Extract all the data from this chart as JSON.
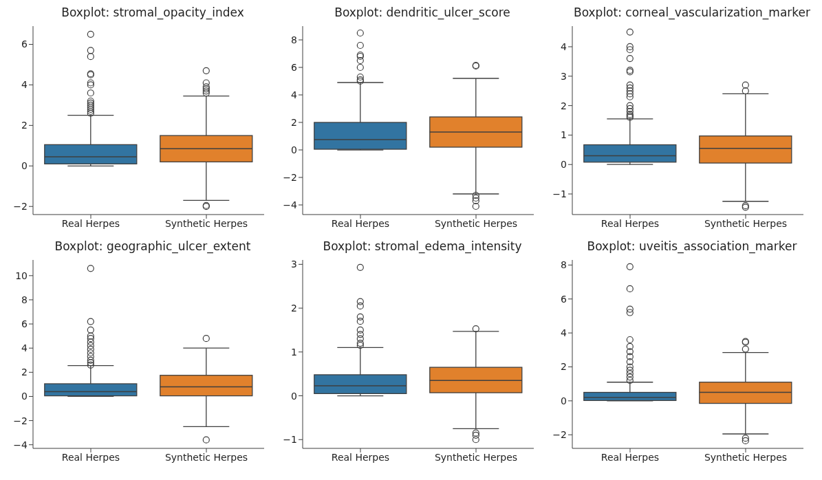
{
  "chart_data": [
    {
      "type": "box",
      "title": "Boxplot: stromal_opacity_index",
      "categories": [
        "Real Herpes",
        "Synthetic Herpes"
      ],
      "colors": [
        "#3274a1",
        "#e1812c"
      ],
      "ylim": [
        -2.4,
        6.9
      ],
      "yticks": [
        -2,
        0,
        2,
        4,
        6
      ],
      "boxes": [
        {
          "low": 0,
          "q1": 0.1,
          "median": 0.45,
          "q3": 1.05,
          "high": 2.5,
          "outliers": [
            2.6,
            2.7,
            2.8,
            2.9,
            3.0,
            3.1,
            3.2,
            3.6,
            4.0,
            4.1,
            4.5,
            4.55,
            5.4,
            5.7,
            6.5
          ]
        },
        {
          "low": -1.7,
          "q1": 0.2,
          "median": 0.85,
          "q3": 1.5,
          "high": 3.45,
          "outliers": [
            3.6,
            3.7,
            3.8,
            3.9,
            4.1,
            4.7,
            -1.95,
            -2.0
          ]
        }
      ]
    },
    {
      "type": "box",
      "title": "Boxplot: dendritic_ulcer_score",
      "categories": [
        "Real Herpes",
        "Synthetic Herpes"
      ],
      "colors": [
        "#3274a1",
        "#e1812c"
      ],
      "ylim": [
        -4.7,
        9.0
      ],
      "yticks": [
        -4,
        -2,
        0,
        2,
        4,
        6,
        8
      ],
      "boxes": [
        {
          "low": 0,
          "q1": 0.05,
          "median": 0.75,
          "q3": 2.0,
          "high": 4.9,
          "outliers": [
            5.0,
            5.1,
            5.3,
            6.0,
            6.5,
            6.8,
            6.9,
            7.6,
            8.5
          ]
        },
        {
          "low": -3.2,
          "q1": 0.2,
          "median": 1.3,
          "q3": 2.4,
          "high": 5.2,
          "outliers": [
            6.1,
            6.15,
            -3.3,
            -3.5,
            -3.7,
            -4.1
          ]
        }
      ]
    },
    {
      "type": "box",
      "title": "Boxplot: corneal_vascularization_marker",
      "categories": [
        "Real Herpes",
        "Synthetic Herpes"
      ],
      "colors": [
        "#3274a1",
        "#e1812c"
      ],
      "ylim": [
        -1.7,
        4.7
      ],
      "yticks": [
        -1,
        0,
        1,
        2,
        3,
        4
      ],
      "boxes": [
        {
          "low": 0,
          "q1": 0.08,
          "median": 0.3,
          "q3": 0.67,
          "high": 1.55,
          "outliers": [
            1.6,
            1.65,
            1.7,
            1.8,
            1.9,
            2.0,
            2.3,
            2.4,
            2.5,
            2.6,
            2.7,
            3.15,
            3.2,
            3.6,
            3.9,
            4.0,
            4.5
          ]
        },
        {
          "low": -1.25,
          "q1": 0.05,
          "median": 0.55,
          "q3": 0.97,
          "high": 2.4,
          "outliers": [
            2.5,
            2.7,
            -1.4,
            -1.45
          ]
        }
      ]
    },
    {
      "type": "box",
      "title": "Boxplot: geographic_ulcer_extent",
      "categories": [
        "Real Herpes",
        "Synthetic Herpes"
      ],
      "colors": [
        "#3274a1",
        "#e1812c"
      ],
      "ylim": [
        -4.3,
        11.3
      ],
      "yticks": [
        -4,
        -2,
        0,
        2,
        4,
        6,
        8,
        10
      ],
      "boxes": [
        {
          "low": 0,
          "q1": 0.05,
          "median": 0.4,
          "q3": 1.05,
          "high": 2.55,
          "outliers": [
            2.6,
            2.8,
            3.0,
            3.3,
            3.6,
            3.9,
            4.2,
            4.5,
            4.8,
            5.0,
            5.5,
            6.2,
            10.6
          ]
        },
        {
          "low": -2.5,
          "q1": 0.05,
          "median": 0.8,
          "q3": 1.75,
          "high": 4.0,
          "outliers": [
            4.8,
            -3.6
          ]
        }
      ]
    },
    {
      "type": "box",
      "title": "Boxplot: stromal_edema_intensity",
      "categories": [
        "Real Herpes",
        "Synthetic Herpes"
      ],
      "colors": [
        "#3274a1",
        "#e1812c"
      ],
      "ylim": [
        -1.2,
        3.1
      ],
      "yticks": [
        -1,
        0,
        1,
        2,
        3
      ],
      "boxes": [
        {
          "low": 0,
          "q1": 0.05,
          "median": 0.23,
          "q3": 0.48,
          "high": 1.1,
          "outliers": [
            1.15,
            1.2,
            1.3,
            1.4,
            1.5,
            1.7,
            1.8,
            2.05,
            2.15,
            2.93
          ]
        },
        {
          "low": -0.75,
          "q1": 0.07,
          "median": 0.35,
          "q3": 0.65,
          "high": 1.47,
          "outliers": [
            1.53,
            -0.85,
            -0.9,
            -1.0
          ]
        }
      ]
    },
    {
      "type": "box",
      "title": "Boxplot: uveitis_association_marker",
      "categories": [
        "Real Herpes",
        "Synthetic Herpes"
      ],
      "colors": [
        "#3274a1",
        "#e1812c"
      ],
      "ylim": [
        -2.8,
        8.3
      ],
      "yticks": [
        -2,
        0,
        2,
        4,
        6,
        8
      ],
      "boxes": [
        {
          "low": 0,
          "q1": 0.02,
          "median": 0.2,
          "q3": 0.5,
          "high": 1.1,
          "outliers": [
            1.2,
            1.4,
            1.6,
            1.8,
            2.0,
            2.3,
            2.6,
            2.9,
            3.2,
            3.6,
            5.2,
            5.4,
            6.6,
            7.9
          ]
        },
        {
          "low": -1.95,
          "q1": -0.15,
          "median": 0.5,
          "q3": 1.1,
          "high": 2.85,
          "outliers": [
            3.05,
            3.45,
            3.5,
            -2.2,
            -2.35
          ]
        }
      ]
    }
  ]
}
